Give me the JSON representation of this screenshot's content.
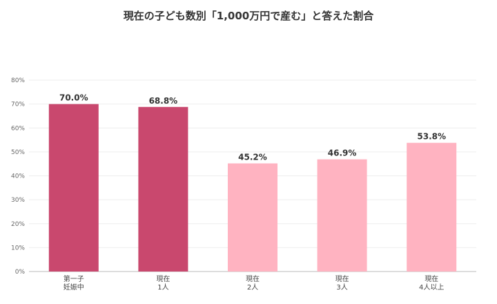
{
  "chart_data": {
    "type": "bar",
    "title": "現在の子ども数別「1,000万円で産む」と答えた割合",
    "categories": [
      [
        "第一子",
        "妊娠中"
      ],
      [
        "現在",
        "1人"
      ],
      [
        "現在",
        "2人"
      ],
      [
        "現在",
        "3人"
      ],
      [
        "現在",
        "4人以上"
      ]
    ],
    "values": [
      70.0,
      68.8,
      45.2,
      46.9,
      53.8
    ],
    "data_labels": [
      "70.0%",
      "68.8%",
      "45.2%",
      "46.9%",
      "53.8%"
    ],
    "ylim": [
      0,
      80
    ],
    "yticks": [
      0,
      10,
      20,
      30,
      40,
      50,
      60,
      70,
      80
    ],
    "ytick_labels": [
      "0%",
      "10%",
      "20%",
      "30%",
      "40%",
      "50%",
      "60%",
      "70%",
      "80%"
    ],
    "grid": true,
    "xlabel": "",
    "ylabel": "",
    "colors": {
      "highlight": "#c9486e",
      "normal": "#ffb3c1",
      "grid": "#eeeeee",
      "axis": "#bbbbbb"
    },
    "highlight_indices": [
      0,
      1
    ]
  }
}
